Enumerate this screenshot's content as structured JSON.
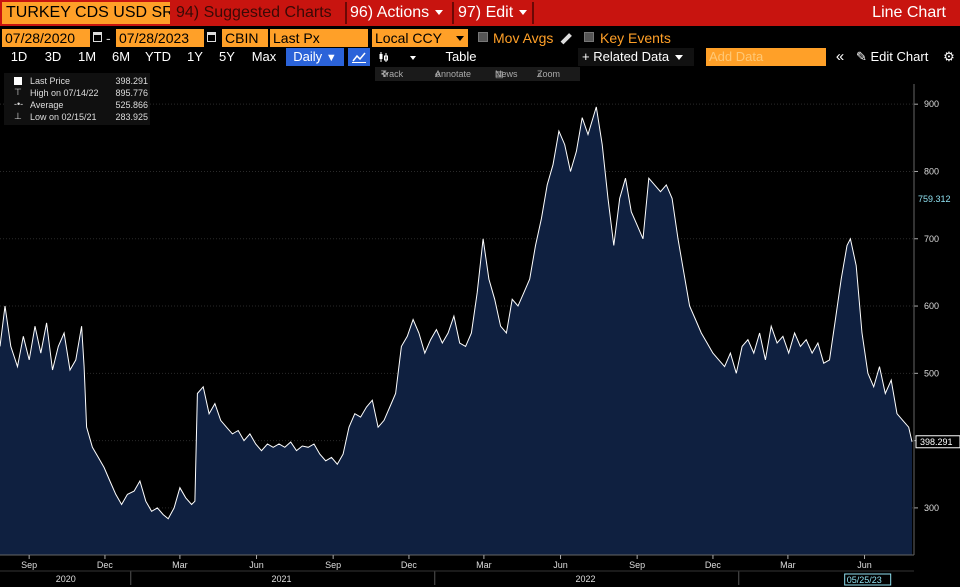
{
  "toolbar": {
    "ticker": "TURKEY CDS USD SR",
    "suggested": "94) Suggested Charts",
    "actions": "96) Actions",
    "edit": "97) Edit",
    "chart_mode": "Line Chart"
  },
  "settings": {
    "start_date": "07/28/2020",
    "date_separator": "-",
    "end_date": "07/28/2023",
    "source": "CBIN",
    "field": "Last Px",
    "currency": "Local CCY",
    "mov_avgs": "Mov Avgs",
    "key_events": "Key Events"
  },
  "ranges": [
    "1D",
    "3D",
    "1M",
    "6M",
    "YTD",
    "1Y",
    "5Y",
    "Max"
  ],
  "period": "Daily",
  "table_label": "Table",
  "related_data": "Related Data",
  "add_data_placeholder": "Add Data",
  "edit_chart": "Edit Chart",
  "tools": {
    "track": "Track",
    "annotate": "Annotate",
    "news": "News",
    "zoom": "Zoom"
  },
  "legend": {
    "last_label": "Last Price",
    "last_value": "398.291",
    "high_label": "High on 07/14/22",
    "high_value": "895.776",
    "avg_label": "Average",
    "avg_value": "525.866",
    "low_label": "Low on 02/15/21",
    "low_value": "283.925"
  },
  "colors": {
    "accent": "#ffa028",
    "bar": "#c8140f",
    "area": "#0f2040",
    "line": "#ffffff",
    "ma_tag": "#8fe0f0"
  },
  "chart_data": {
    "type": "area",
    "ylim": [
      230,
      930
    ],
    "yticks": [
      300,
      400,
      500,
      600,
      700,
      800,
      900
    ],
    "last_value_label": "398.291",
    "ma_value_label": "759.312",
    "ma_value": 759.312,
    "cursor_date_label": "05/25/23",
    "xlim": [
      "2020-07-28",
      "2023-07-28"
    ],
    "month_ticks": [
      {
        "date": "2020-09-01",
        "label": "Sep"
      },
      {
        "date": "2020-12-01",
        "label": "Dec"
      },
      {
        "date": "2021-03-01",
        "label": "Mar"
      },
      {
        "date": "2021-06-01",
        "label": "Jun"
      },
      {
        "date": "2021-09-01",
        "label": "Sep"
      },
      {
        "date": "2021-12-01",
        "label": "Dec"
      },
      {
        "date": "2022-03-01",
        "label": "Mar"
      },
      {
        "date": "2022-06-01",
        "label": "Jun"
      },
      {
        "date": "2022-09-01",
        "label": "Sep"
      },
      {
        "date": "2022-12-01",
        "label": "Dec"
      },
      {
        "date": "2023-03-01",
        "label": "Mar"
      },
      {
        "date": "2023-06-01",
        "label": "Jun"
      }
    ],
    "year_labels": [
      {
        "date": "2020-10-15",
        "label": "2020"
      },
      {
        "date": "2021-07-01",
        "label": "2021"
      },
      {
        "date": "2022-07-01",
        "label": "2022"
      }
    ],
    "year_dividers": [
      "2021-01-01",
      "2022-01-01",
      "2023-01-01"
    ],
    "series": [
      {
        "points": [
          [
            "2020-07-28",
            540
          ],
          [
            "2020-08-03",
            600
          ],
          [
            "2020-08-10",
            540
          ],
          [
            "2020-08-18",
            510
          ],
          [
            "2020-08-25",
            555
          ],
          [
            "2020-09-01",
            520
          ],
          [
            "2020-09-08",
            570
          ],
          [
            "2020-09-15",
            530
          ],
          [
            "2020-09-22",
            575
          ],
          [
            "2020-09-29",
            505
          ],
          [
            "2020-10-06",
            540
          ],
          [
            "2020-10-13",
            560
          ],
          [
            "2020-10-20",
            505
          ],
          [
            "2020-10-27",
            520
          ],
          [
            "2020-11-03",
            570
          ],
          [
            "2020-11-06",
            510
          ],
          [
            "2020-11-09",
            420
          ],
          [
            "2020-11-16",
            390
          ],
          [
            "2020-11-23",
            375
          ],
          [
            "2020-11-30",
            360
          ],
          [
            "2020-12-07",
            340
          ],
          [
            "2020-12-14",
            320
          ],
          [
            "2020-12-21",
            305
          ],
          [
            "2020-12-28",
            320
          ],
          [
            "2021-01-05",
            325
          ],
          [
            "2021-01-12",
            340
          ],
          [
            "2021-01-19",
            310
          ],
          [
            "2021-01-26",
            295
          ],
          [
            "2021-02-02",
            300
          ],
          [
            "2021-02-09",
            290
          ],
          [
            "2021-02-15",
            284
          ],
          [
            "2021-02-22",
            300
          ],
          [
            "2021-03-01",
            330
          ],
          [
            "2021-03-08",
            315
          ],
          [
            "2021-03-15",
            305
          ],
          [
            "2021-03-19",
            310
          ],
          [
            "2021-03-22",
            470
          ],
          [
            "2021-03-29",
            480
          ],
          [
            "2021-04-05",
            440
          ],
          [
            "2021-04-12",
            455
          ],
          [
            "2021-04-19",
            430
          ],
          [
            "2021-04-26",
            420
          ],
          [
            "2021-05-03",
            410
          ],
          [
            "2021-05-10",
            415
          ],
          [
            "2021-05-17",
            400
          ],
          [
            "2021-05-24",
            410
          ],
          [
            "2021-05-31",
            395
          ],
          [
            "2021-06-07",
            385
          ],
          [
            "2021-06-14",
            395
          ],
          [
            "2021-06-21",
            390
          ],
          [
            "2021-06-28",
            395
          ],
          [
            "2021-07-05",
            390
          ],
          [
            "2021-07-12",
            398
          ],
          [
            "2021-07-19",
            385
          ],
          [
            "2021-07-26",
            392
          ],
          [
            "2021-08-02",
            390
          ],
          [
            "2021-08-09",
            395
          ],
          [
            "2021-08-16",
            380
          ],
          [
            "2021-08-23",
            370
          ],
          [
            "2021-08-30",
            375
          ],
          [
            "2021-09-06",
            365
          ],
          [
            "2021-09-13",
            380
          ],
          [
            "2021-09-20",
            420
          ],
          [
            "2021-09-27",
            440
          ],
          [
            "2021-10-04",
            435
          ],
          [
            "2021-10-11",
            450
          ],
          [
            "2021-10-18",
            460
          ],
          [
            "2021-10-25",
            420
          ],
          [
            "2021-11-01",
            430
          ],
          [
            "2021-11-08",
            450
          ],
          [
            "2021-11-15",
            470
          ],
          [
            "2021-11-22",
            540
          ],
          [
            "2021-11-29",
            555
          ],
          [
            "2021-12-06",
            580
          ],
          [
            "2021-12-13",
            560
          ],
          [
            "2021-12-20",
            530
          ],
          [
            "2021-12-27",
            550
          ],
          [
            "2022-01-03",
            565
          ],
          [
            "2022-01-10",
            545
          ],
          [
            "2022-01-17",
            560
          ],
          [
            "2022-01-24",
            585
          ],
          [
            "2022-01-31",
            545
          ],
          [
            "2022-02-07",
            540
          ],
          [
            "2022-02-14",
            560
          ],
          [
            "2022-02-21",
            620
          ],
          [
            "2022-02-28",
            700
          ],
          [
            "2022-03-07",
            640
          ],
          [
            "2022-03-14",
            610
          ],
          [
            "2022-03-21",
            570
          ],
          [
            "2022-03-28",
            560
          ],
          [
            "2022-04-04",
            610
          ],
          [
            "2022-04-11",
            600
          ],
          [
            "2022-04-18",
            620
          ],
          [
            "2022-04-25",
            640
          ],
          [
            "2022-05-02",
            690
          ],
          [
            "2022-05-09",
            730
          ],
          [
            "2022-05-16",
            780
          ],
          [
            "2022-05-23",
            810
          ],
          [
            "2022-05-30",
            860
          ],
          [
            "2022-06-06",
            840
          ],
          [
            "2022-06-13",
            800
          ],
          [
            "2022-06-20",
            830
          ],
          [
            "2022-06-27",
            880
          ],
          [
            "2022-07-04",
            855
          ],
          [
            "2022-07-14",
            896
          ],
          [
            "2022-07-21",
            840
          ],
          [
            "2022-07-28",
            760
          ],
          [
            "2022-08-04",
            690
          ],
          [
            "2022-08-11",
            760
          ],
          [
            "2022-08-18",
            790
          ],
          [
            "2022-08-25",
            740
          ],
          [
            "2022-09-01",
            720
          ],
          [
            "2022-09-08",
            700
          ],
          [
            "2022-09-15",
            790
          ],
          [
            "2022-09-22",
            780
          ],
          [
            "2022-09-29",
            770
          ],
          [
            "2022-10-06",
            780
          ],
          [
            "2022-10-13",
            760
          ],
          [
            "2022-10-20",
            700
          ],
          [
            "2022-10-27",
            650
          ],
          [
            "2022-11-03",
            600
          ],
          [
            "2022-11-10",
            580
          ],
          [
            "2022-11-17",
            560
          ],
          [
            "2022-11-24",
            545
          ],
          [
            "2022-12-01",
            530
          ],
          [
            "2022-12-08",
            520
          ],
          [
            "2022-12-15",
            510
          ],
          [
            "2022-12-22",
            530
          ],
          [
            "2022-12-29",
            500
          ],
          [
            "2023-01-05",
            540
          ],
          [
            "2023-01-12",
            550
          ],
          [
            "2023-01-19",
            530
          ],
          [
            "2023-01-26",
            560
          ],
          [
            "2023-02-02",
            520
          ],
          [
            "2023-02-09",
            570
          ],
          [
            "2023-02-16",
            545
          ],
          [
            "2023-02-23",
            555
          ],
          [
            "2023-03-02",
            530
          ],
          [
            "2023-03-09",
            560
          ],
          [
            "2023-03-16",
            540
          ],
          [
            "2023-03-23",
            550
          ],
          [
            "2023-03-30",
            530
          ],
          [
            "2023-04-06",
            545
          ],
          [
            "2023-04-13",
            515
          ],
          [
            "2023-04-20",
            520
          ],
          [
            "2023-04-27",
            580
          ],
          [
            "2023-05-04",
            640
          ],
          [
            "2023-05-11",
            690
          ],
          [
            "2023-05-15",
            700
          ],
          [
            "2023-05-22",
            660
          ],
          [
            "2023-05-29",
            560
          ],
          [
            "2023-06-05",
            500
          ],
          [
            "2023-06-12",
            480
          ],
          [
            "2023-06-19",
            510
          ],
          [
            "2023-06-26",
            470
          ],
          [
            "2023-07-03",
            490
          ],
          [
            "2023-07-10",
            440
          ],
          [
            "2023-07-17",
            430
          ],
          [
            "2023-07-24",
            420
          ],
          [
            "2023-07-28",
            398.291
          ]
        ]
      }
    ]
  }
}
